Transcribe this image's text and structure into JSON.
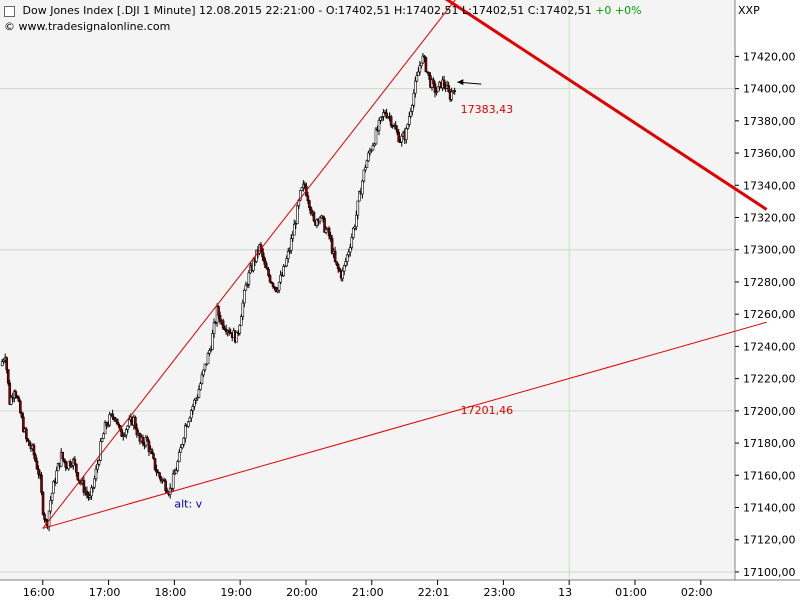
{
  "header": {
    "title_prefix": "Dow Jones Index [.DJI  1 Minute]",
    "date": "12.08.2015",
    "time": "22:21:00",
    "ohlc": "O:17402,51 H:17402,51 L:17402,51 C:17402,51",
    "change": "+0 +0%",
    "copyright": "© www.tradesignalonline.com",
    "symbol": "XXP"
  },
  "colors": {
    "background": "#f4f4f4",
    "grid": "#c8dcc8",
    "candle_up": "#ffffff",
    "candle_down": "#8b0000",
    "trendline": "#e00000",
    "annotation_blue": "#0000c0"
  },
  "chart_data": {
    "type": "candlestick",
    "title": "Dow Jones Index [.DJI  1 Minute]",
    "ylim": [
      17095,
      17455
    ],
    "y_ticks": [
      17100,
      17120,
      17140,
      17160,
      17180,
      17200,
      17220,
      17240,
      17260,
      17280,
      17300,
      17320,
      17340,
      17360,
      17380,
      17400,
      17420
    ],
    "y_tick_labels": [
      "17100,00",
      "17120,00",
      "17140,00",
      "17160,00",
      "17180,00",
      "17200,00",
      "17220,00",
      "17240,00",
      "17260,00",
      "17280,00",
      "17300,00",
      "17320,00",
      "17340,00",
      "17360,00",
      "17380,00",
      "17400,00",
      "17420,00"
    ],
    "x_ticks": [
      {
        "label": "16:00",
        "t": 16.0
      },
      {
        "label": "17:00",
        "t": 17.0
      },
      {
        "label": "18:00",
        "t": 18.0
      },
      {
        "label": "19:00",
        "t": 19.0
      },
      {
        "label": "20:00",
        "t": 20.0
      },
      {
        "label": "21:00",
        "t": 21.0
      },
      {
        "label": "22:01",
        "t": 22.0
      },
      {
        "label": "23:00",
        "t": 23.0
      },
      {
        "label": "13",
        "t": 24.0
      },
      {
        "label": "01:00",
        "t": 25.0
      },
      {
        "label": "02:00",
        "t": 26.0
      }
    ],
    "price_path": [
      [
        15.36,
        17228
      ],
      [
        15.43,
        17236
      ],
      [
        15.5,
        17205
      ],
      [
        15.57,
        17215
      ],
      [
        15.65,
        17200
      ],
      [
        15.75,
        17182
      ],
      [
        15.85,
        17175
      ],
      [
        15.95,
        17160
      ],
      [
        16.0,
        17140
      ],
      [
        16.06,
        17128
      ],
      [
        16.12,
        17145
      ],
      [
        16.2,
        17160
      ],
      [
        16.28,
        17172
      ],
      [
        16.36,
        17166
      ],
      [
        16.45,
        17170
      ],
      [
        16.55,
        17158
      ],
      [
        16.65,
        17150
      ],
      [
        16.72,
        17145
      ],
      [
        16.8,
        17160
      ],
      [
        16.88,
        17178
      ],
      [
        16.95,
        17190
      ],
      [
        17.02,
        17195
      ],
      [
        17.1,
        17198
      ],
      [
        17.18,
        17185
      ],
      [
        17.28,
        17190
      ],
      [
        17.38,
        17195
      ],
      [
        17.48,
        17180
      ],
      [
        17.58,
        17182
      ],
      [
        17.68,
        17168
      ],
      [
        17.76,
        17160
      ],
      [
        17.85,
        17155
      ],
      [
        17.93,
        17150
      ],
      [
        18.0,
        17160
      ],
      [
        18.08,
        17172
      ],
      [
        18.16,
        17190
      ],
      [
        18.25,
        17200
      ],
      [
        18.35,
        17210
      ],
      [
        18.45,
        17225
      ],
      [
        18.55,
        17240
      ],
      [
        18.65,
        17262
      ],
      [
        18.72,
        17255
      ],
      [
        18.8,
        17252
      ],
      [
        18.88,
        17248
      ],
      [
        18.95,
        17245
      ],
      [
        19.02,
        17262
      ],
      [
        19.1,
        17280
      ],
      [
        19.2,
        17292
      ],
      [
        19.3,
        17302
      ],
      [
        19.38,
        17288
      ],
      [
        19.46,
        17282
      ],
      [
        19.55,
        17276
      ],
      [
        19.65,
        17285
      ],
      [
        19.75,
        17300
      ],
      [
        19.85,
        17320
      ],
      [
        19.92,
        17335
      ],
      [
        19.98,
        17340
      ],
      [
        20.05,
        17330
      ],
      [
        20.12,
        17316
      ],
      [
        20.2,
        17322
      ],
      [
        20.28,
        17314
      ],
      [
        20.36,
        17308
      ],
      [
        20.45,
        17290
      ],
      [
        20.55,
        17284
      ],
      [
        20.65,
        17300
      ],
      [
        20.75,
        17318
      ],
      [
        20.82,
        17335
      ],
      [
        20.9,
        17352
      ],
      [
        20.98,
        17362
      ],
      [
        21.05,
        17370
      ],
      [
        21.12,
        17378
      ],
      [
        21.2,
        17386
      ],
      [
        21.28,
        17382
      ],
      [
        21.36,
        17374
      ],
      [
        21.44,
        17368
      ],
      [
        21.52,
        17372
      ],
      [
        21.6,
        17390
      ],
      [
        21.68,
        17405
      ],
      [
        21.76,
        17420
      ],
      [
        21.82,
        17414
      ],
      [
        21.88,
        17405
      ],
      [
        21.94,
        17400
      ],
      [
        22.0,
        17398
      ],
      [
        22.06,
        17404
      ],
      [
        22.12,
        17402
      ],
      [
        22.18,
        17395
      ],
      [
        22.22,
        17398
      ],
      [
        22.26,
        17402
      ]
    ],
    "trendlines": [
      {
        "from": [
          16.0,
          17127
        ],
        "to": [
          22.4,
          17462
        ],
        "width": 1
      },
      {
        "from": [
          16.0,
          17127
        ],
        "to": [
          27.0,
          17255
        ],
        "width": 1
      },
      {
        "from": [
          21.78,
          17465
        ],
        "to": [
          27.0,
          17325
        ],
        "width": 3
      }
    ],
    "annotations": [
      {
        "text": "17383,43",
        "t": 22.35,
        "v": 17385,
        "color": "red"
      },
      {
        "text": "17201,46",
        "t": 22.35,
        "v": 17198,
        "color": "red"
      },
      {
        "text": "alt: v",
        "t": 18.0,
        "v": 17140,
        "color": "blue"
      }
    ],
    "last_price_marker": {
      "t": 22.3,
      "v": 17404
    }
  }
}
